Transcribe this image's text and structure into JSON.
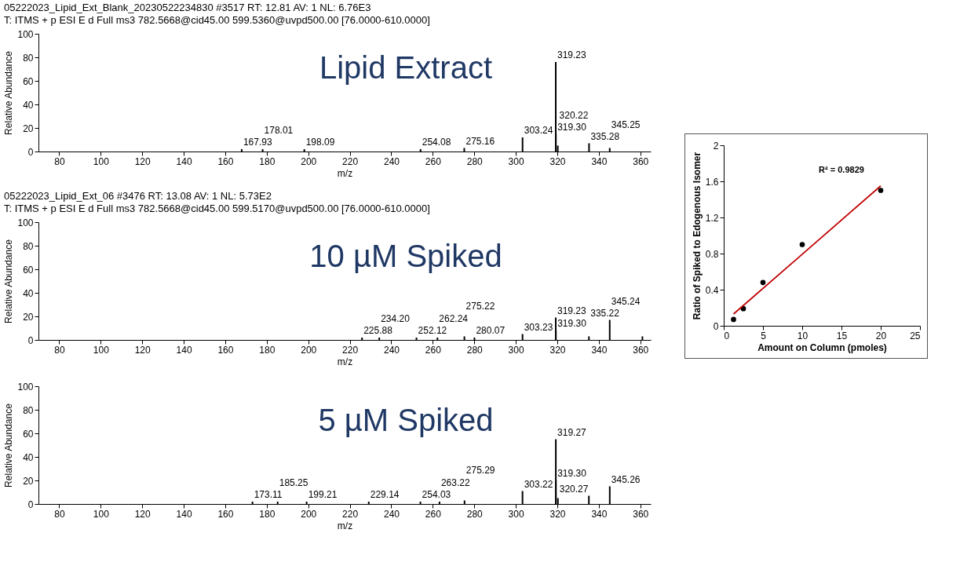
{
  "chart_data": [
    {
      "type": "bar",
      "title": "05222023_Lipid_Ext_Blank_20230522234830 #3517 RT: 12.81 AV: 1 NL: 6.76E3",
      "subtitle": "T: ITMS + p ESI E d Full ms3 782.5668@cid45.00 599.5360@uvpd500.00 [76.0000-610.0000]",
      "xlabel": "m/z",
      "ylabel": "Relative Abundance",
      "x": [
        167.93,
        178.01,
        198.09,
        254.08,
        275.16,
        303.24,
        319.23,
        319.3,
        320.22,
        335.28,
        345.25
      ],
      "values": [
        2,
        2,
        2,
        2,
        3,
        12,
        76,
        15,
        5,
        7,
        3
      ],
      "color": "#000000",
      "xlim": [
        70,
        365
      ],
      "xticks": [
        80,
        100,
        120,
        140,
        160,
        180,
        200,
        220,
        240,
        260,
        280,
        300,
        320,
        340,
        360
      ],
      "ylim": [
        0,
        100
      ],
      "yticks": [
        0,
        20,
        40,
        60,
        80,
        100
      ],
      "annotations": [
        "Lipid Extract",
        {
          "text": "167.93",
          "x": 167.93,
          "y": 2
        },
        {
          "text": "178.01",
          "x": 178.01,
          "y": 2
        },
        {
          "text": "198.09",
          "x": 198.09,
          "y": 2
        },
        {
          "text": "254.08",
          "x": 254.08,
          "y": 2
        },
        {
          "text": "275.16",
          "x": 275.16,
          "y": 3
        },
        {
          "text": "303.24",
          "x": 303.24,
          "y": 12
        },
        {
          "text": "319.23",
          "x": 319.23,
          "y": 76
        },
        {
          "text": "319.30",
          "x": 319.3,
          "y": 15
        },
        {
          "text": "320.22",
          "x": 320.22,
          "y": 5
        },
        {
          "text": "335.28",
          "x": 335.28,
          "y": 7
        },
        {
          "text": "345.25",
          "x": 345.25,
          "y": 3
        }
      ]
    },
    {
      "type": "bar",
      "title": "05222023_Lipid_Ext_06 #3476 RT: 13.08 AV: 1 NL: 5.73E2",
      "subtitle": "T: ITMS + p ESI E d Full ms3 782.5668@cid45.00 599.5170@uvpd500.00 [76.0000-610.0000]",
      "xlabel": "m/z",
      "ylabel": "Relative Abundance",
      "x": [
        225.88,
        234.2,
        252.12,
        262.24,
        275.22,
        280.07,
        303.23,
        319.23,
        319.3,
        335.22,
        345.24,
        361
      ],
      "values": [
        2,
        2,
        2,
        2,
        3,
        2,
        5,
        19,
        8,
        3,
        17,
        3
      ],
      "color": "#000000",
      "xlim": [
        70,
        365
      ],
      "xticks": [
        80,
        100,
        120,
        140,
        160,
        180,
        200,
        220,
        240,
        260,
        280,
        300,
        320,
        340,
        360
      ],
      "ylim": [
        0,
        100
      ],
      "yticks": [
        0,
        20,
        40,
        60,
        80,
        100
      ],
      "annotations": [
        "10 µM Spiked",
        {
          "text": "225.88",
          "x": 225.88,
          "y": 2
        },
        {
          "text": "234.20",
          "x": 234.2,
          "y": 2
        },
        {
          "text": "252.12",
          "x": 252.12,
          "y": 2
        },
        {
          "text": "262.24",
          "x": 262.24,
          "y": 2
        },
        {
          "text": "275.22",
          "x": 275.22,
          "y": 3
        },
        {
          "text": "280.07",
          "x": 280.07,
          "y": 2
        },
        {
          "text": "303.23",
          "x": 303.23,
          "y": 5
        },
        {
          "text": "319.23",
          "x": 319.23,
          "y": 19
        },
        {
          "text": "319.30",
          "x": 319.3,
          "y": 8
        },
        {
          "text": "335.22",
          "x": 335.22,
          "y": 3
        },
        {
          "text": "345.24",
          "x": 345.24,
          "y": 17
        }
      ]
    },
    {
      "type": "bar",
      "xlabel": "m/z",
      "ylabel": "Relative Abundance",
      "x": [
        173.11,
        185.25,
        199.21,
        229.14,
        254.03,
        263.22,
        275.29,
        303.22,
        319.27,
        319.3,
        320.27,
        335.2,
        345.26
      ],
      "values": [
        2,
        2,
        2,
        2,
        2,
        2,
        3,
        11,
        55,
        20,
        5,
        7,
        15
      ],
      "color": "#000000",
      "xlim": [
        70,
        365
      ],
      "xticks": [
        80,
        100,
        120,
        140,
        160,
        180,
        200,
        220,
        240,
        260,
        280,
        300,
        320,
        340,
        360
      ],
      "ylim": [
        0,
        100
      ],
      "yticks": [
        0,
        20,
        40,
        60,
        80,
        100
      ],
      "annotations": [
        "5 µM Spiked",
        {
          "text": "173.11",
          "x": 173.11,
          "y": 2
        },
        {
          "text": "185.25",
          "x": 185.25,
          "y": 2
        },
        {
          "text": "199.21",
          "x": 199.21,
          "y": 2
        },
        {
          "text": "229.14",
          "x": 229.14,
          "y": 2
        },
        {
          "text": "254.03",
          "x": 254.03,
          "y": 2
        },
        {
          "text": "263.22",
          "x": 263.22,
          "y": 2
        },
        {
          "text": "275.29",
          "x": 275.29,
          "y": 3
        },
        {
          "text": "303.22",
          "x": 303.22,
          "y": 11
        },
        {
          "text": "319.27",
          "x": 319.27,
          "y": 55
        },
        {
          "text": "319.30",
          "x": 319.3,
          "y": 20
        },
        {
          "text": "320.27",
          "x": 320.27,
          "y": 5
        },
        {
          "text": "345.26",
          "x": 345.26,
          "y": 15
        }
      ]
    },
    {
      "type": "scatter",
      "xlabel": "Amount on Column (pmoles)",
      "ylabel": "Ratio of Spiked to Edogenous Isomer",
      "xlim": [
        0,
        25
      ],
      "xticks": [
        0,
        5,
        10,
        15,
        20,
        25
      ],
      "ylim": [
        0,
        2
      ],
      "yticks": [
        0,
        0.4,
        0.8,
        1.2,
        1.6,
        2
      ],
      "series": [
        {
          "type": "scatter",
          "marker": "circle",
          "color": "#000000",
          "x": [
            1.25,
            2.5,
            5,
            10,
            20
          ],
          "values": [
            0.07,
            0.19,
            0.48,
            0.9,
            1.5
          ]
        },
        {
          "type": "line",
          "color": "#c00000",
          "x": [
            1.25,
            20
          ],
          "values": [
            0.13,
            1.55
          ]
        }
      ],
      "annotations": [
        "R² = 0.9829"
      ]
    }
  ]
}
